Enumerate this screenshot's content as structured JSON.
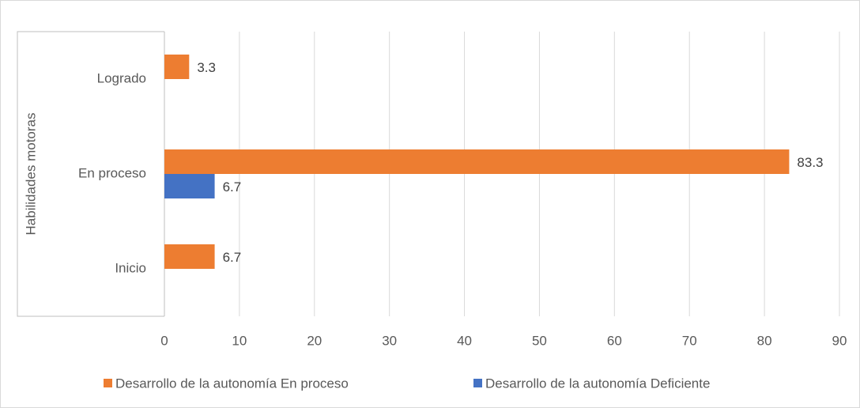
{
  "chart_data": {
    "type": "bar",
    "orientation": "horizontal",
    "y_label": "Habilidades motoras",
    "categories": [
      "Inicio",
      "En proceso",
      "Logrado"
    ],
    "series": [
      {
        "name": "Desarrollo de la autonomía  En proceso",
        "color": "#ed7d31",
        "values": [
          6.7,
          83.3,
          3.3
        ]
      },
      {
        "name": "Desarrollo de la autonomía  Deficiente",
        "color": "#4472c4",
        "values": [
          null,
          6.7,
          null
        ]
      }
    ],
    "xlim": [
      0,
      90
    ],
    "xticks": [
      0,
      10,
      20,
      30,
      40,
      50,
      60,
      70,
      80,
      90
    ],
    "grid": true,
    "legend": "bottom"
  }
}
